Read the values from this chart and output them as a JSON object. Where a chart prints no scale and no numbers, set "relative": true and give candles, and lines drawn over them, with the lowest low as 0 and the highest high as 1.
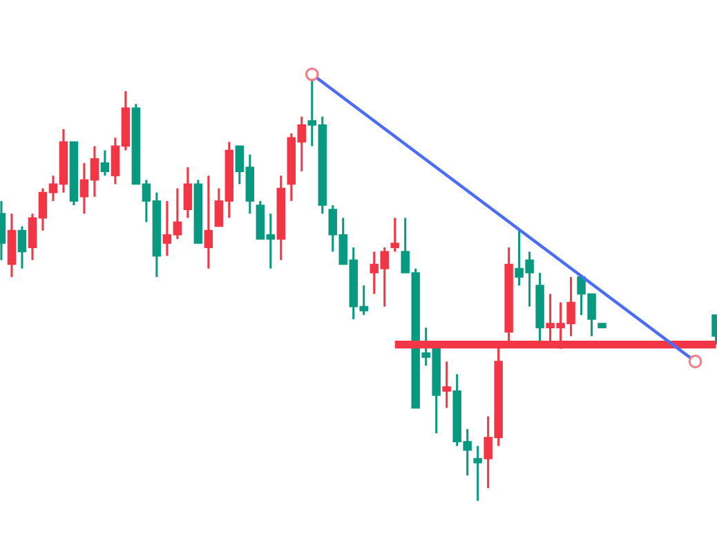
{
  "chart_data": {
    "type": "candlestick",
    "relative": true,
    "categories": [
      null,
      null,
      null,
      null,
      null,
      null,
      null,
      null,
      null,
      null,
      null,
      null,
      null,
      null,
      null,
      null,
      null,
      null,
      null,
      null,
      null,
      null,
      null,
      null,
      null,
      null,
      null,
      null,
      null,
      null,
      null,
      null,
      null,
      null,
      null,
      null,
      null,
      null,
      null,
      null,
      null,
      null,
      null,
      null,
      null,
      null,
      null,
      null,
      null,
      null,
      null,
      null,
      null,
      null,
      null,
      null,
      null,
      null,
      null,
      null,
      null,
      null,
      null,
      null,
      null,
      null,
      null,
      null,
      null,
      null
    ],
    "colors": [
      "#089981",
      "#f23645",
      "#089981",
      "#f23645",
      "#f23645",
      "#f23645",
      "#f23645",
      "#089981",
      "#f23645",
      "#f23645",
      "#089981",
      "#f23645",
      "#f23645",
      "#089981",
      "#089981",
      "#089981",
      "#f23645",
      "#f23645",
      "#f23645",
      "#089981",
      "#f23645",
      "#f23645",
      "#f23645",
      "#089981",
      "#089981",
      "#089981",
      "#089981",
      "#f23645",
      "#f23645",
      "#f23645",
      "#089981",
      "#089981",
      "#089981",
      "#089981",
      "#089981",
      "#089981",
      "#f23645",
      "#f23645",
      "#f23645",
      "#089981",
      "#089981",
      "#089981",
      "#089981",
      "#f23645",
      "#089981",
      "#089981",
      "#089981",
      "#f23645",
      "#f23645",
      "#f23645",
      "#089981",
      "#089981",
      "#089981",
      "#f23645",
      "#f23645",
      "#f23645",
      "#089981",
      "#089981",
      "#089981",
      null,
      null,
      null,
      null,
      null,
      null,
      null,
      null,
      null,
      null,
      "#089981"
    ],
    "ohlc": [
      [
        0.68,
        0.71,
        0.57,
        0.61
      ],
      [
        0.56,
        0.68,
        0.53,
        0.64
      ],
      [
        0.64,
        0.65,
        0.55,
        0.59
      ],
      [
        0.6,
        0.68,
        0.57,
        0.67
      ],
      [
        0.67,
        0.74,
        0.64,
        0.73
      ],
      [
        0.73,
        0.77,
        0.71,
        0.75
      ],
      [
        0.75,
        0.88,
        0.73,
        0.85
      ],
      [
        0.85,
        0.85,
        0.7,
        0.71
      ],
      [
        0.72,
        0.8,
        0.68,
        0.76
      ],
      [
        0.76,
        0.84,
        0.72,
        0.81
      ],
      [
        0.8,
        0.83,
        0.77,
        0.78
      ],
      [
        0.77,
        0.86,
        0.75,
        0.84
      ],
      [
        0.84,
        0.97,
        0.83,
        0.93
      ],
      [
        0.93,
        0.94,
        0.75,
        0.75
      ],
      [
        0.75,
        0.76,
        0.66,
        0.71
      ],
      [
        0.71,
        0.73,
        0.53,
        0.58
      ],
      [
        0.61,
        0.71,
        0.58,
        0.63
      ],
      [
        0.63,
        0.74,
        0.62,
        0.66
      ],
      [
        0.69,
        0.79,
        0.67,
        0.75
      ],
      [
        0.75,
        0.76,
        0.61,
        0.61
      ],
      [
        0.6,
        0.77,
        0.55,
        0.64
      ],
      [
        0.65,
        0.74,
        0.65,
        0.71
      ],
      [
        0.71,
        0.85,
        0.67,
        0.83
      ],
      [
        0.84,
        0.84,
        0.75,
        0.78
      ],
      [
        0.79,
        0.82,
        0.68,
        0.71
      ],
      [
        0.7,
        0.71,
        0.62,
        0.62
      ],
      [
        0.63,
        0.68,
        0.55,
        0.62
      ],
      [
        0.62,
        0.77,
        0.57,
        0.74
      ],
      [
        0.75,
        0.87,
        0.71,
        0.86
      ],
      [
        0.85,
        0.91,
        0.78,
        0.89
      ],
      [
        0.9,
        1,
        0.84,
        0.89
      ],
      [
        0.89,
        0.91,
        0.68,
        0.7
      ],
      [
        0.69,
        0.7,
        0.59,
        0.63
      ],
      [
        0.63,
        0.67,
        0.56,
        0.56
      ],
      [
        0.57,
        0.6,
        0.43,
        0.46
      ],
      [
        0.46,
        0.51,
        0.44,
        0.45
      ],
      [
        0.54,
        0.59,
        0.49,
        0.56
      ],
      [
        0.55,
        0.6,
        0.46,
        0.59
      ],
      [
        0.6,
        0.67,
        0.59,
        0.61
      ],
      [
        0.59,
        0.67,
        0.54,
        0.54
      ],
      [
        0.54,
        0.55,
        0.22,
        0.22
      ],
      [
        0.35,
        0.41,
        0.32,
        0.34
      ],
      [
        0.36,
        0.37,
        0.16,
        0.25
      ],
      [
        0.26,
        0.33,
        0.22,
        0.27
      ],
      [
        0.26,
        0.3,
        0.13,
        0.14
      ],
      [
        0.14,
        0.17,
        0.06,
        0.12
      ],
      [
        0.1,
        0.13,
        0,
        0.09
      ],
      [
        0.1,
        0.2,
        0.03,
        0.15
      ],
      [
        0.15,
        0.37,
        0.13,
        0.33
      ],
      [
        0.4,
        0.6,
        0.37,
        0.56
      ],
      [
        0.55,
        0.64,
        0.51,
        0.53
      ],
      [
        0.57,
        0.59,
        0.46,
        0.54
      ],
      [
        0.51,
        0.54,
        0.37,
        0.41
      ],
      [
        0.41,
        0.49,
        0.37,
        0.42
      ],
      [
        0.41,
        0.47,
        0.36,
        0.42
      ],
      [
        0.42,
        0.53,
        0.39,
        0.47
      ],
      [
        0.53,
        0.53,
        0.44,
        0.49
      ],
      [
        0.49,
        0.49,
        0.39,
        0.43
      ],
      [
        0.42,
        0.42,
        0.41,
        0.41
      ],
      null,
      null,
      null,
      null,
      null,
      null,
      null,
      null,
      null,
      null,
      [
        0.44,
        0.44,
        0.37,
        0.39
      ]
    ],
    "series": [
      {
        "type": "line",
        "color": "#f23645",
        "marker": "none",
        "values": [
          null,
          null,
          null,
          null,
          null,
          null,
          null,
          null,
          null,
          null,
          null,
          null,
          null,
          null,
          null,
          null,
          null,
          null,
          null,
          null,
          null,
          null,
          null,
          null,
          null,
          null,
          null,
          null,
          null,
          null,
          null,
          null,
          null,
          null,
          null,
          null,
          null,
          null,
          0.37,
          0.37,
          0.37,
          0.37,
          0.37,
          0.37,
          0.37,
          0.37,
          0.37,
          0.37,
          0.37,
          0.37,
          0.37,
          0.37,
          0.37,
          0.37,
          0.37,
          0.37,
          0.37,
          0.37,
          0.37,
          0.37,
          0.37,
          0.37,
          0.37,
          0.37,
          0.37,
          0.37,
          0.37,
          0.37,
          0.37,
          0.37
        ]
      },
      {
        "type": "line",
        "color": "#4a6cf7",
        "marker": "circle",
        "colors": [
          null,
          null,
          null,
          null,
          null,
          null,
          null,
          null,
          null,
          null,
          null,
          null,
          null,
          null,
          null,
          null,
          null,
          null,
          null,
          null,
          null,
          null,
          null,
          null,
          null,
          null,
          null,
          null,
          null,
          null,
          "#f77b86",
          null,
          null,
          null,
          null,
          null,
          null,
          null,
          null,
          null,
          null,
          null,
          null,
          null,
          null,
          null,
          null,
          null,
          null,
          null,
          null,
          null,
          null,
          null,
          null,
          null,
          null,
          null,
          null,
          null,
          null,
          null,
          null,
          null,
          null,
          null,
          null,
          "#f77b86",
          null,
          null
        ],
        "values": [
          null,
          null,
          null,
          null,
          null,
          null,
          null,
          null,
          null,
          null,
          null,
          null,
          null,
          null,
          null,
          null,
          null,
          null,
          null,
          null,
          null,
          null,
          null,
          null,
          null,
          null,
          null,
          null,
          null,
          null,
          1.01,
          null,
          null,
          null,
          null,
          null,
          null,
          null,
          null,
          null,
          null,
          null,
          null,
          null,
          null,
          null,
          null,
          null,
          null,
          null,
          null,
          null,
          null,
          null,
          null,
          null,
          null,
          null,
          null,
          null,
          null,
          null,
          null,
          null,
          null,
          null,
          null,
          0.33,
          null,
          null
        ]
      }
    ]
  }
}
